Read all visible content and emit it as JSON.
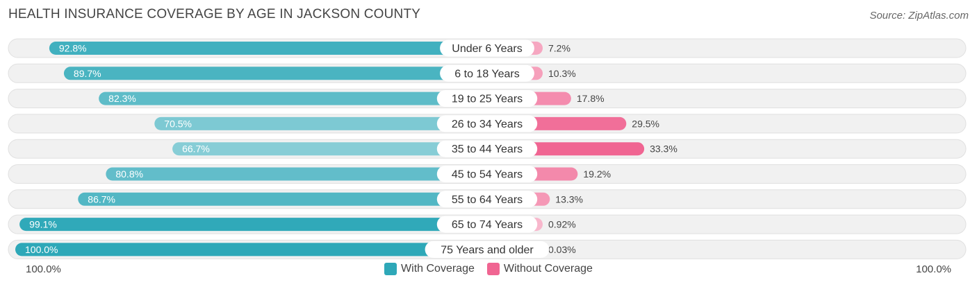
{
  "title": "HEALTH INSURANCE COVERAGE BY AGE IN JACKSON COUNTY",
  "source": "Source: ZipAtlas.com",
  "axis": {
    "left_label": "100.0%",
    "right_label": "100.0%"
  },
  "legend": [
    {
      "label": "With Coverage",
      "color": "#2ea8b8"
    },
    {
      "label": "Without Coverage",
      "color": "#f06592"
    }
  ],
  "chart_data": {
    "type": "bar",
    "orientation": "horizontal-diverging",
    "title": "HEALTH INSURANCE COVERAGE BY AGE IN JACKSON COUNTY",
    "categories": [
      "Under 6 Years",
      "6 to 18 Years",
      "19 to 25 Years",
      "26 to 34 Years",
      "35 to 44 Years",
      "45 to 54 Years",
      "55 to 64 Years",
      "65 to 74 Years",
      "75 Years and older"
    ],
    "series": [
      {
        "name": "With Coverage",
        "values": [
          92.8,
          89.7,
          82.3,
          70.5,
          66.7,
          80.8,
          86.7,
          99.1,
          100.0
        ],
        "labels": [
          "92.8%",
          "89.7%",
          "82.3%",
          "70.5%",
          "66.7%",
          "80.8%",
          "86.7%",
          "99.1%",
          "100.0%"
        ]
      },
      {
        "name": "Without Coverage",
        "values": [
          7.2,
          10.3,
          17.8,
          29.5,
          33.3,
          19.2,
          13.3,
          0.92,
          0.03
        ],
        "labels": [
          "7.2%",
          "10.3%",
          "17.8%",
          "29.5%",
          "33.3%",
          "19.2%",
          "13.3%",
          "0.92%",
          "0.03%"
        ]
      }
    ],
    "xlim": [
      -100,
      100
    ]
  }
}
